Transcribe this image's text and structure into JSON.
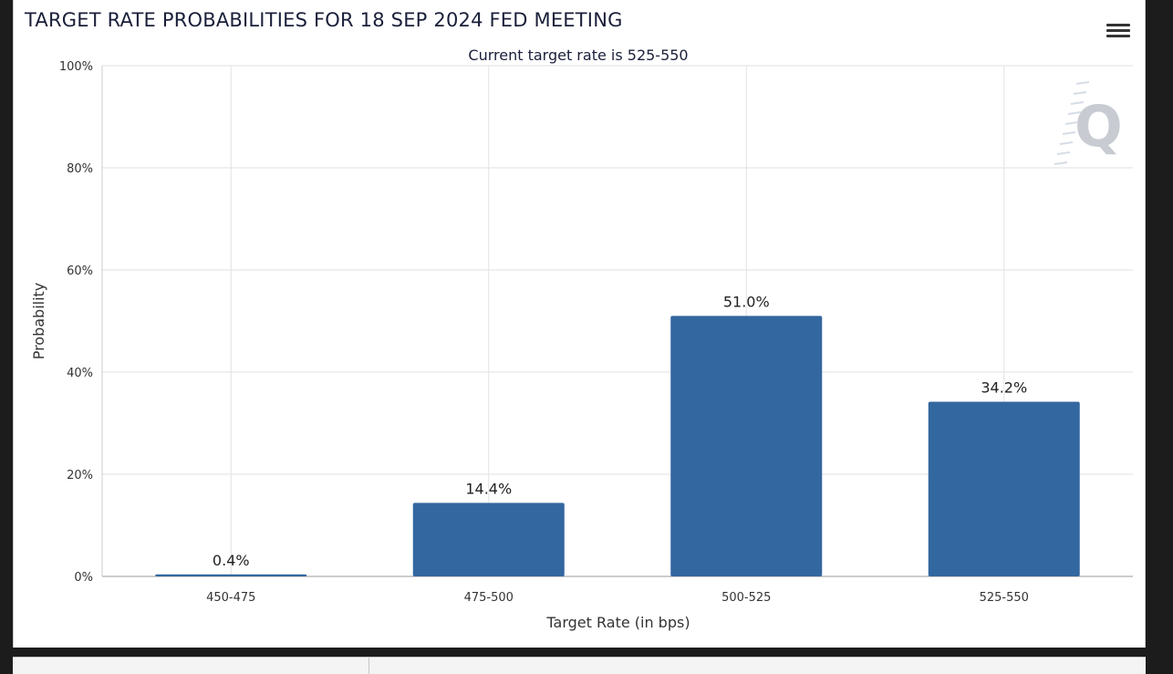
{
  "header": {
    "title": "TARGET RATE PROBABILITIES FOR 18 SEP 2024 FED MEETING",
    "menu_icon": "hamburger-menu-icon"
  },
  "watermark": {
    "letter": "Q"
  },
  "chart_data": {
    "type": "bar",
    "title": "TARGET RATE PROBABILITIES FOR 18 SEP 2024 FED MEETING",
    "subtitle": "Current target rate is 525-550",
    "xlabel": "Target Rate (in bps)",
    "ylabel": "Probability",
    "categories": [
      "450-475",
      "475-500",
      "500-525",
      "525-550"
    ],
    "values": [
      0.4,
      14.4,
      51.0,
      34.2
    ],
    "data_labels": [
      "0.4%",
      "14.4%",
      "51.0%",
      "34.2%"
    ],
    "ylim": [
      0,
      100
    ],
    "y_ticks": [
      0,
      20,
      40,
      60,
      80,
      100
    ],
    "y_tick_labels": [
      "0%",
      "20%",
      "40%",
      "60%",
      "80%",
      "100%"
    ],
    "grid": true,
    "legend": "none",
    "bar_color": "#33679f"
  }
}
